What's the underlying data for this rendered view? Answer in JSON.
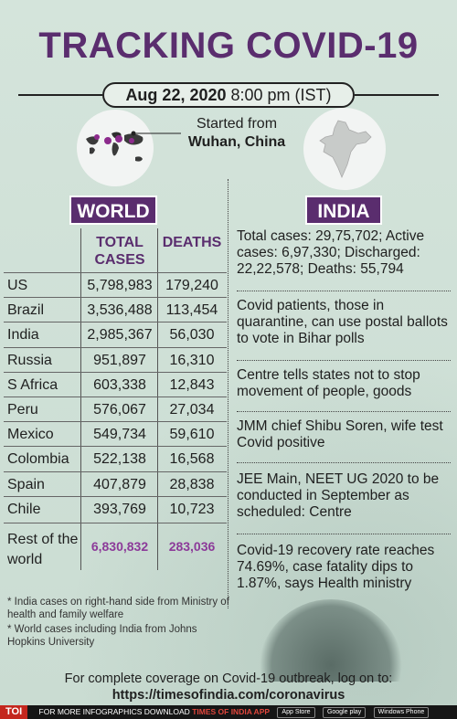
{
  "header": {
    "title": "TRACKING COVID-19",
    "date": "Aug 22, 2020",
    "time": "8:00 pm (IST)"
  },
  "origin": {
    "started_label": "Started from",
    "city": "Wuhan, China"
  },
  "world": {
    "tag": "WORLD",
    "columns": {
      "cases": "TOTAL CASES",
      "deaths": "DEATHS"
    },
    "rows": [
      {
        "country": "US",
        "cases": "5,798,983",
        "deaths": "179,240"
      },
      {
        "country": "Brazil",
        "cases": "3,536,488",
        "deaths": "113,454"
      },
      {
        "country": "India",
        "cases": "2,985,367",
        "deaths": "56,030"
      },
      {
        "country": "Russia",
        "cases": "951,897",
        "deaths": "16,310"
      },
      {
        "country": "S Africa",
        "cases": "603,338",
        "deaths": "12,843"
      },
      {
        "country": "Peru",
        "cases": "576,067",
        "deaths": "27,034"
      },
      {
        "country": "Mexico",
        "cases": "549,734",
        "deaths": "59,610"
      },
      {
        "country": "Colombia",
        "cases": "522,138",
        "deaths": "16,568"
      },
      {
        "country": "Spain",
        "cases": "407,879",
        "deaths": "28,838"
      },
      {
        "country": "Chile",
        "cases": "393,769",
        "deaths": "10,723"
      }
    ],
    "rest": {
      "label": "Rest of the world",
      "cases": "6,830,832",
      "deaths": "283,036"
    }
  },
  "notes": [
    "* India cases on right-hand side from Ministry of health and family welfare",
    "* World cases including India from Johns Hopkins University"
  ],
  "india": {
    "tag": "INDIA",
    "news": [
      "Total cases: 29,75,702; Active cases: 6,97,330; Discharged: 22,22,578; Deaths: 55,794",
      "Covid patients, those in quarantine, can use postal ballots to vote in Bihar polls",
      "Centre tells states not to stop movement of people, goods",
      "JMM chief Shibu Soren, wife test Covid positive",
      "JEE Main, NEET UG 2020 to be conducted in September as scheduled: Centre",
      "Covid-19 recovery rate reaches 74.69%, case fatality dips to 1.87%, says Health ministry"
    ]
  },
  "footer": {
    "line1": "For complete coverage on Covid-19 outbreak, log on to:",
    "url": "https://timesofindia.com/coronavirus"
  },
  "bottom_bar": {
    "logo": "TOI",
    "text": "FOR MORE  INFOGRAPHICS DOWNLOAD",
    "app": "TIMES OF INDIA APP",
    "stores": [
      "App Store",
      "Google play",
      "Windows Phone"
    ]
  },
  "colors": {
    "accent": "#5a2d6e",
    "highlight": "#8c3a99",
    "background": "#cfe0d6"
  }
}
